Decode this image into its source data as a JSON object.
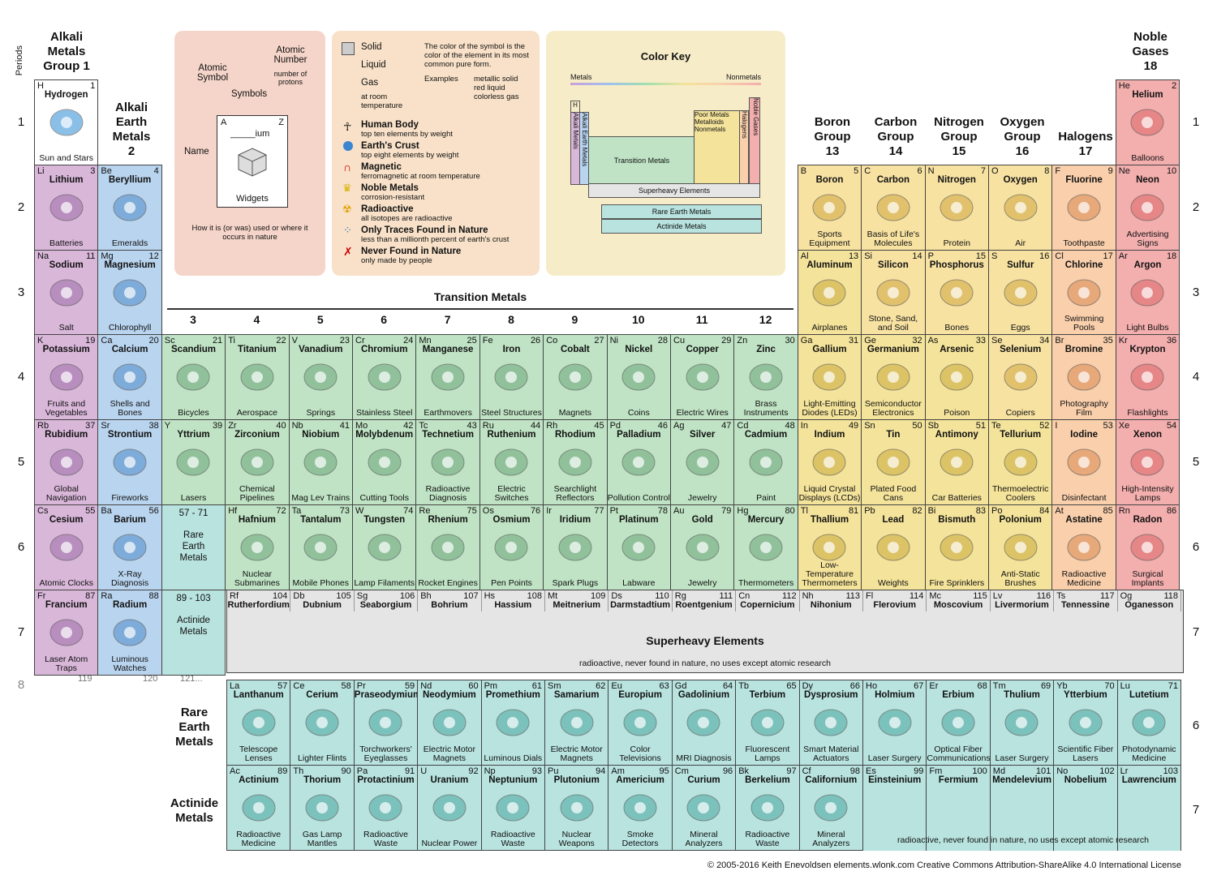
{
  "headers": {
    "periods_label": "Periods",
    "alkali": [
      "Alkali",
      "Metals",
      "Group 1"
    ],
    "alkali_earth": [
      "Alkali",
      "Earth",
      "Metals",
      "2"
    ],
    "noble": [
      "Noble",
      "Gases",
      "18"
    ],
    "boron": [
      "Boron",
      "Group",
      "13"
    ],
    "carbon": [
      "Carbon",
      "Group",
      "14"
    ],
    "nitrogen": [
      "Nitrogen",
      "Group",
      "15"
    ],
    "oxygen": [
      "Oxygen",
      "Group",
      "16"
    ],
    "halogens": [
      "Halogens",
      "17"
    ],
    "transition": "Transition Metals",
    "tm_groups": [
      "3",
      "4",
      "5",
      "6",
      "7",
      "8",
      "9",
      "10",
      "11",
      "12"
    ],
    "periods": [
      "1",
      "2",
      "3",
      "4",
      "5",
      "6",
      "7"
    ],
    "period8": "8",
    "rare_earth_label": [
      "Rare",
      "Earth",
      "Metals"
    ],
    "actinide_label": [
      "Actinide",
      "Metals"
    ],
    "superheavy_title": "Superheavy Elements",
    "superheavy_note": "radioactive, never found in nature, no uses except atomic research",
    "actinide_note": "radioactive, never found in nature, no uses except atomic research",
    "row8_nums": [
      "119",
      "120",
      "121..."
    ],
    "footer": "© 2005-2016 Keith Enevoldsen   elements.wlonk.com   Creative Commons Attribution-ShareAlike 4.0 International License"
  },
  "legend": {
    "atomic_symbol": "Atomic Symbol",
    "atomic_number": "Atomic Number",
    "atomic_number_sub": "number of protons",
    "symbols": "Symbols",
    "name": "Name",
    "widgets": "Widgets",
    "sample_symbol": "A",
    "sample_number": "Z",
    "sample_name": "_____ium",
    "how_used": "How it is (or was) used or where it occurs in nature",
    "solid": "Solid",
    "liquid": "Liquid",
    "gas": "Gas",
    "gas_sub": "at room temperature",
    "color_note": "The color of the symbol is the color of the element in its most common pure form.",
    "examples": "Examples",
    "ex1": "metallic solid",
    "ex2": "red liquid",
    "ex3": "colorless gas",
    "items": [
      {
        "t": "Human Body",
        "s": "top ten elements by weight"
      },
      {
        "t": "Earth's Crust",
        "s": "top eight elements by weight"
      },
      {
        "t": "Magnetic",
        "s": "ferromagnetic at room temperature"
      },
      {
        "t": "Noble Metals",
        "s": "corrosion-resistant"
      },
      {
        "t": "Radioactive",
        "s": "all isotopes are radioactive"
      },
      {
        "t": "Only Traces Found in Nature",
        "s": "less than a millionth percent of earth's crust"
      },
      {
        "t": "Never Found in Nature",
        "s": "only made by people"
      }
    ],
    "color_key": "Color Key",
    "metals": "Metals",
    "nonmetals": "Nonmetals",
    "ck_h": "H",
    "ck_alkali": "Alkali Metals",
    "ck_ae": "Alkali Earth Metals",
    "ck_tm": "Transition Metals",
    "ck_pm": "Poor Metals",
    "ck_ml": "Metalloids",
    "ck_nm": "Nonmetals",
    "ck_hal": "Halogens",
    "ck_ng": "Noble Gases",
    "ck_sh": "Superheavy Elements",
    "ck_re": "Rare Earth Metals",
    "ck_ac": "Actinide Metals"
  },
  "elements": [
    {
      "s": "H",
      "n": "1",
      "name": "Hydrogen",
      "use": "Sun and Stars",
      "r": 1,
      "c": 1,
      "k": "h"
    },
    {
      "s": "He",
      "n": "2",
      "name": "Helium",
      "use": "Balloons",
      "r": 1,
      "c": 18,
      "k": "ng"
    },
    {
      "s": "Li",
      "n": "3",
      "name": "Lithium",
      "use": "Batteries",
      "r": 2,
      "c": 1,
      "k": "alk"
    },
    {
      "s": "Be",
      "n": "4",
      "name": "Beryllium",
      "use": "Emeralds",
      "r": 2,
      "c": 2,
      "k": "ae"
    },
    {
      "s": "B",
      "n": "5",
      "name": "Boron",
      "use": "Sports Equipment",
      "r": 2,
      "c": 13,
      "k": "nm"
    },
    {
      "s": "C",
      "n": "6",
      "name": "Carbon",
      "use": "Basis of Life's Molecules",
      "r": 2,
      "c": 14,
      "k": "nm"
    },
    {
      "s": "N",
      "n": "7",
      "name": "Nitrogen",
      "use": "Protein",
      "r": 2,
      "c": 15,
      "k": "nm"
    },
    {
      "s": "O",
      "n": "8",
      "name": "Oxygen",
      "use": "Air",
      "r": 2,
      "c": 16,
      "k": "nm"
    },
    {
      "s": "F",
      "n": "9",
      "name": "Fluorine",
      "use": "Toothpaste",
      "r": 2,
      "c": 17,
      "k": "hal"
    },
    {
      "s": "Ne",
      "n": "10",
      "name": "Neon",
      "use": "Advertising Signs",
      "r": 2,
      "c": 18,
      "k": "ng"
    },
    {
      "s": "Na",
      "n": "11",
      "name": "Sodium",
      "use": "Salt",
      "r": 3,
      "c": 1,
      "k": "alk"
    },
    {
      "s": "Mg",
      "n": "12",
      "name": "Magnesium",
      "use": "Chlorophyll",
      "r": 3,
      "c": 2,
      "k": "ae"
    },
    {
      "s": "Al",
      "n": "13",
      "name": "Aluminum",
      "use": "Airplanes",
      "r": 3,
      "c": 13,
      "k": "pm"
    },
    {
      "s": "Si",
      "n": "14",
      "name": "Silicon",
      "use": "Stone, Sand, and Soil",
      "r": 3,
      "c": 14,
      "k": "nm"
    },
    {
      "s": "P",
      "n": "15",
      "name": "Phosphorus",
      "use": "Bones",
      "r": 3,
      "c": 15,
      "k": "nm"
    },
    {
      "s": "S",
      "n": "16",
      "name": "Sulfur",
      "use": "Eggs",
      "r": 3,
      "c": 16,
      "k": "nm"
    },
    {
      "s": "Cl",
      "n": "17",
      "name": "Chlorine",
      "use": "Swimming Pools",
      "r": 3,
      "c": 17,
      "k": "hal"
    },
    {
      "s": "Ar",
      "n": "18",
      "name": "Argon",
      "use": "Light Bulbs",
      "r": 3,
      "c": 18,
      "k": "ng"
    },
    {
      "s": "K",
      "n": "19",
      "name": "Potassium",
      "use": "Fruits and Vegetables",
      "r": 4,
      "c": 1,
      "k": "alk"
    },
    {
      "s": "Ca",
      "n": "20",
      "name": "Calcium",
      "use": "Shells and Bones",
      "r": 4,
      "c": 2,
      "k": "ae"
    },
    {
      "s": "Sc",
      "n": "21",
      "name": "Scandium",
      "use": "Bicycles",
      "r": 4,
      "c": 3,
      "k": "tm"
    },
    {
      "s": "Ti",
      "n": "22",
      "name": "Titanium",
      "use": "Aerospace",
      "r": 4,
      "c": 4,
      "k": "tm"
    },
    {
      "s": "V",
      "n": "23",
      "name": "Vanadium",
      "use": "Springs",
      "r": 4,
      "c": 5,
      "k": "tm"
    },
    {
      "s": "Cr",
      "n": "24",
      "name": "Chromium",
      "use": "Stainless Steel",
      "r": 4,
      "c": 6,
      "k": "tm"
    },
    {
      "s": "Mn",
      "n": "25",
      "name": "Manganese",
      "use": "Earthmovers",
      "r": 4,
      "c": 7,
      "k": "tm"
    },
    {
      "s": "Fe",
      "n": "26",
      "name": "Iron",
      "use": "Steel Structures",
      "r": 4,
      "c": 8,
      "k": "tm"
    },
    {
      "s": "Co",
      "n": "27",
      "name": "Cobalt",
      "use": "Magnets",
      "r": 4,
      "c": 9,
      "k": "tm"
    },
    {
      "s": "Ni",
      "n": "28",
      "name": "Nickel",
      "use": "Coins",
      "r": 4,
      "c": 10,
      "k": "tm"
    },
    {
      "s": "Cu",
      "n": "29",
      "name": "Copper",
      "use": "Electric Wires",
      "r": 4,
      "c": 11,
      "k": "tm"
    },
    {
      "s": "Zn",
      "n": "30",
      "name": "Zinc",
      "use": "Brass Instruments",
      "r": 4,
      "c": 12,
      "k": "tm"
    },
    {
      "s": "Ga",
      "n": "31",
      "name": "Gallium",
      "use": "Light-Emitting Diodes (LEDs)",
      "r": 4,
      "c": 13,
      "k": "pm"
    },
    {
      "s": "Ge",
      "n": "32",
      "name": "Germanium",
      "use": "Semiconductor Electronics",
      "r": 4,
      "c": 14,
      "k": "pm"
    },
    {
      "s": "As",
      "n": "33",
      "name": "Arsenic",
      "use": "Poison",
      "r": 4,
      "c": 15,
      "k": "pm"
    },
    {
      "s": "Se",
      "n": "34",
      "name": "Selenium",
      "use": "Copiers",
      "r": 4,
      "c": 16,
      "k": "nm"
    },
    {
      "s": "Br",
      "n": "35",
      "name": "Bromine",
      "use": "Photography Film",
      "r": 4,
      "c": 17,
      "k": "hal"
    },
    {
      "s": "Kr",
      "n": "36",
      "name": "Krypton",
      "use": "Flashlights",
      "r": 4,
      "c": 18,
      "k": "ng"
    },
    {
      "s": "Rb",
      "n": "37",
      "name": "Rubidium",
      "use": "Global Navigation",
      "r": 5,
      "c": 1,
      "k": "alk"
    },
    {
      "s": "Sr",
      "n": "38",
      "name": "Strontium",
      "use": "Fireworks",
      "r": 5,
      "c": 2,
      "k": "ae"
    },
    {
      "s": "Y",
      "n": "39",
      "name": "Yttrium",
      "use": "Lasers",
      "r": 5,
      "c": 3,
      "k": "tm"
    },
    {
      "s": "Zr",
      "n": "40",
      "name": "Zirconium",
      "use": "Chemical Pipelines",
      "r": 5,
      "c": 4,
      "k": "tm"
    },
    {
      "s": "Nb",
      "n": "41",
      "name": "Niobium",
      "use": "Mag Lev Trains",
      "r": 5,
      "c": 5,
      "k": "tm"
    },
    {
      "s": "Mo",
      "n": "42",
      "name": "Molybdenum",
      "use": "Cutting Tools",
      "r": 5,
      "c": 6,
      "k": "tm"
    },
    {
      "s": "Tc",
      "n": "43",
      "name": "Technetium",
      "use": "Radioactive Diagnosis",
      "r": 5,
      "c": 7,
      "k": "tm"
    },
    {
      "s": "Ru",
      "n": "44",
      "name": "Ruthenium",
      "use": "Electric Switches",
      "r": 5,
      "c": 8,
      "k": "tm"
    },
    {
      "s": "Rh",
      "n": "45",
      "name": "Rhodium",
      "use": "Searchlight Reflectors",
      "r": 5,
      "c": 9,
      "k": "tm"
    },
    {
      "s": "Pd",
      "n": "46",
      "name": "Palladium",
      "use": "Pollution Control",
      "r": 5,
      "c": 10,
      "k": "tm"
    },
    {
      "s": "Ag",
      "n": "47",
      "name": "Silver",
      "use": "Jewelry",
      "r": 5,
      "c": 11,
      "k": "tm"
    },
    {
      "s": "Cd",
      "n": "48",
      "name": "Cadmium",
      "use": "Paint",
      "r": 5,
      "c": 12,
      "k": "tm"
    },
    {
      "s": "In",
      "n": "49",
      "name": "Indium",
      "use": "Liquid Crystal Displays (LCDs)",
      "r": 5,
      "c": 13,
      "k": "pm"
    },
    {
      "s": "Sn",
      "n": "50",
      "name": "Tin",
      "use": "Plated Food Cans",
      "r": 5,
      "c": 14,
      "k": "pm"
    },
    {
      "s": "Sb",
      "n": "51",
      "name": "Antimony",
      "use": "Car Batteries",
      "r": 5,
      "c": 15,
      "k": "pm"
    },
    {
      "s": "Te",
      "n": "52",
      "name": "Tellurium",
      "use": "Thermoelectric Coolers",
      "r": 5,
      "c": 16,
      "k": "pm"
    },
    {
      "s": "I",
      "n": "53",
      "name": "Iodine",
      "use": "Disinfectant",
      "r": 5,
      "c": 17,
      "k": "hal"
    },
    {
      "s": "Xe",
      "n": "54",
      "name": "Xenon",
      "use": "High-Intensity Lamps",
      "r": 5,
      "c": 18,
      "k": "ng"
    },
    {
      "s": "Cs",
      "n": "55",
      "name": "Cesium",
      "use": "Atomic Clocks",
      "r": 6,
      "c": 1,
      "k": "alk"
    },
    {
      "s": "Ba",
      "n": "56",
      "name": "Barium",
      "use": "X-Ray Diagnosis",
      "r": 6,
      "c": 2,
      "k": "ae"
    },
    {
      "s": "57 - 71",
      "n": "",
      "name": "",
      "use": "Rare Earth Metals",
      "r": 6,
      "c": 3,
      "k": "re",
      "ph": true
    },
    {
      "s": "Hf",
      "n": "72",
      "name": "Hafnium",
      "use": "Nuclear Submarines",
      "r": 6,
      "c": 4,
      "k": "tm"
    },
    {
      "s": "Ta",
      "n": "73",
      "name": "Tantalum",
      "use": "Mobile Phones",
      "r": 6,
      "c": 5,
      "k": "tm"
    },
    {
      "s": "W",
      "n": "74",
      "name": "Tungsten",
      "use": "Lamp Filaments",
      "r": 6,
      "c": 6,
      "k": "tm"
    },
    {
      "s": "Re",
      "n": "75",
      "name": "Rhenium",
      "use": "Rocket Engines",
      "r": 6,
      "c": 7,
      "k": "tm"
    },
    {
      "s": "Os",
      "n": "76",
      "name": "Osmium",
      "use": "Pen Points",
      "r": 6,
      "c": 8,
      "k": "tm"
    },
    {
      "s": "Ir",
      "n": "77",
      "name": "Iridium",
      "use": "Spark Plugs",
      "r": 6,
      "c": 9,
      "k": "tm"
    },
    {
      "s": "Pt",
      "n": "78",
      "name": "Platinum",
      "use": "Labware",
      "r": 6,
      "c": 10,
      "k": "tm"
    },
    {
      "s": "Au",
      "n": "79",
      "name": "Gold",
      "use": "Jewelry",
      "r": 6,
      "c": 11,
      "k": "tm"
    },
    {
      "s": "Hg",
      "n": "80",
      "name": "Mercury",
      "use": "Thermometers",
      "r": 6,
      "c": 12,
      "k": "tm"
    },
    {
      "s": "Tl",
      "n": "81",
      "name": "Thallium",
      "use": "Low-Temperature Thermometers",
      "r": 6,
      "c": 13,
      "k": "pm"
    },
    {
      "s": "Pb",
      "n": "82",
      "name": "Lead",
      "use": "Weights",
      "r": 6,
      "c": 14,
      "k": "pm"
    },
    {
      "s": "Bi",
      "n": "83",
      "name": "Bismuth",
      "use": "Fire Sprinklers",
      "r": 6,
      "c": 15,
      "k": "pm"
    },
    {
      "s": "Po",
      "n": "84",
      "name": "Polonium",
      "use": "Anti-Static Brushes",
      "r": 6,
      "c": 16,
      "k": "pm"
    },
    {
      "s": "At",
      "n": "85",
      "name": "Astatine",
      "use": "Radioactive Medicine",
      "r": 6,
      "c": 17,
      "k": "hal"
    },
    {
      "s": "Rn",
      "n": "86",
      "name": "Radon",
      "use": "Surgical Implants",
      "r": 6,
      "c": 18,
      "k": "ng"
    },
    {
      "s": "Fr",
      "n": "87",
      "name": "Francium",
      "use": "Laser Atom Traps",
      "r": 7,
      "c": 1,
      "k": "alk"
    },
    {
      "s": "Ra",
      "n": "88",
      "name": "Radium",
      "use": "Luminous Watches",
      "r": 7,
      "c": 2,
      "k": "ae"
    },
    {
      "s": "89 - 103",
      "n": "",
      "name": "",
      "use": "Actinide Metals",
      "r": 7,
      "c": 3,
      "k": "ac",
      "ph": true
    }
  ],
  "superheavy": [
    {
      "s": "Rf",
      "n": "104",
      "name": "Rutherfordium"
    },
    {
      "s": "Db",
      "n": "105",
      "name": "Dubnium"
    },
    {
      "s": "Sg",
      "n": "106",
      "name": "Seaborgium"
    },
    {
      "s": "Bh",
      "n": "107",
      "name": "Bohrium"
    },
    {
      "s": "Hs",
      "n": "108",
      "name": "Hassium"
    },
    {
      "s": "Mt",
      "n": "109",
      "name": "Meitnerium"
    },
    {
      "s": "Ds",
      "n": "110",
      "name": "Darmstadtium"
    },
    {
      "s": "Rg",
      "n": "111",
      "name": "Roentgenium"
    },
    {
      "s": "Cn",
      "n": "112",
      "name": "Copernicium"
    },
    {
      "s": "Nh",
      "n": "113",
      "name": "Nihonium"
    },
    {
      "s": "Fl",
      "n": "114",
      "name": "Flerovium"
    },
    {
      "s": "Mc",
      "n": "115",
      "name": "Moscovium"
    },
    {
      "s": "Lv",
      "n": "116",
      "name": "Livermorium"
    },
    {
      "s": "Ts",
      "n": "117",
      "name": "Tennessine"
    },
    {
      "s": "Og",
      "n": "118",
      "name": "Oganesson"
    }
  ],
  "rare_earth": [
    {
      "s": "La",
      "n": "57",
      "name": "Lanthanum",
      "use": "Telescope Lenses"
    },
    {
      "s": "Ce",
      "n": "58",
      "name": "Cerium",
      "use": "Lighter Flints"
    },
    {
      "s": "Pr",
      "n": "59",
      "name": "Praseodymium",
      "use": "Torchworkers' Eyeglasses"
    },
    {
      "s": "Nd",
      "n": "60",
      "name": "Neodymium",
      "use": "Electric Motor Magnets"
    },
    {
      "s": "Pm",
      "n": "61",
      "name": "Promethium",
      "use": "Luminous Dials"
    },
    {
      "s": "Sm",
      "n": "62",
      "name": "Samarium",
      "use": "Electric Motor Magnets"
    },
    {
      "s": "Eu",
      "n": "63",
      "name": "Europium",
      "use": "Color Televisions"
    },
    {
      "s": "Gd",
      "n": "64",
      "name": "Gadolinium",
      "use": "MRI Diagnosis"
    },
    {
      "s": "Tb",
      "n": "65",
      "name": "Terbium",
      "use": "Fluorescent Lamps"
    },
    {
      "s": "Dy",
      "n": "66",
      "name": "Dysprosium",
      "use": "Smart Material Actuators"
    },
    {
      "s": "Ho",
      "n": "67",
      "name": "Holmium",
      "use": "Laser Surgery"
    },
    {
      "s": "Er",
      "n": "68",
      "name": "Erbium",
      "use": "Optical Fiber Communications"
    },
    {
      "s": "Tm",
      "n": "69",
      "name": "Thulium",
      "use": "Laser Surgery"
    },
    {
      "s": "Yb",
      "n": "70",
      "name": "Ytterbium",
      "use": "Scientific Fiber Lasers"
    },
    {
      "s": "Lu",
      "n": "71",
      "name": "Lutetium",
      "use": "Photodynamic Medicine"
    }
  ],
  "actinides": [
    {
      "s": "Ac",
      "n": "89",
      "name": "Actinium",
      "use": "Radioactive Medicine"
    },
    {
      "s": "Th",
      "n": "90",
      "name": "Thorium",
      "use": "Gas Lamp Mantles"
    },
    {
      "s": "Pa",
      "n": "91",
      "name": "Protactinium",
      "use": "Radioactive Waste"
    },
    {
      "s": "U",
      "n": "92",
      "name": "Uranium",
      "use": "Nuclear Power"
    },
    {
      "s": "Np",
      "n": "93",
      "name": "Neptunium",
      "use": "Radioactive Waste"
    },
    {
      "s": "Pu",
      "n": "94",
      "name": "Plutonium",
      "use": "Nuclear Weapons"
    },
    {
      "s": "Am",
      "n": "95",
      "name": "Americium",
      "use": "Smoke Detectors"
    },
    {
      "s": "Cm",
      "n": "96",
      "name": "Curium",
      "use": "Mineral Analyzers"
    },
    {
      "s": "Bk",
      "n": "97",
      "name": "Berkelium",
      "use": "Radioactive Waste"
    },
    {
      "s": "Cf",
      "n": "98",
      "name": "Californium",
      "use": "Mineral Analyzers"
    },
    {
      "s": "Es",
      "n": "99",
      "name": "Einsteinium",
      "use": ""
    },
    {
      "s": "Fm",
      "n": "100",
      "name": "Fermium",
      "use": ""
    },
    {
      "s": "Md",
      "n": "101",
      "name": "Mendelevium",
      "use": ""
    },
    {
      "s": "No",
      "n": "102",
      "name": "Nobelium",
      "use": ""
    },
    {
      "s": "Lr",
      "n": "103",
      "name": "Lawrencium",
      "use": ""
    }
  ],
  "colors": {
    "alk": "#d9b7d9",
    "ae": "#b9d4ef",
    "tm": "#bfe3c4",
    "pm": "#f4e39a",
    "nm": "#f7e2a2",
    "hal": "#f9cfac",
    "ng": "#f3aeae",
    "sh": "#e5e5e5",
    "re": "#b8e3df",
    "legend1": "#f5d5c9",
    "legend2": "#f8e1c8",
    "legend3": "#f7ecc8"
  }
}
